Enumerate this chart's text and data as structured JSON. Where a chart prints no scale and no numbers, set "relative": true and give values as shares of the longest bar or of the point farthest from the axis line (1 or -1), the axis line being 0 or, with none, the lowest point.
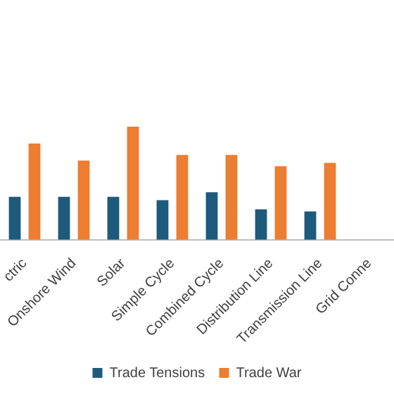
{
  "chart_data": {
    "type": "bar",
    "relative": true,
    "categories": [
      "ctric",
      "Onshore Wind",
      "Solar",
      "Simple Cycle",
      "Combined Cycle",
      "Distribution Line",
      "Transmission Line",
      "Grid Conne"
    ],
    "series": [
      {
        "name": "Trade Tensions",
        "color": "#1d5a7c",
        "values": [
          0.38,
          0.38,
          0.38,
          0.35,
          0.42,
          0.27,
          0.25,
          null
        ]
      },
      {
        "name": "Trade War",
        "color": "#ed7d31",
        "values": [
          0.85,
          0.7,
          1,
          0.75,
          0.75,
          0.65,
          0.68,
          null
        ]
      }
    ],
    "legend": "bottom",
    "grid": false
  }
}
